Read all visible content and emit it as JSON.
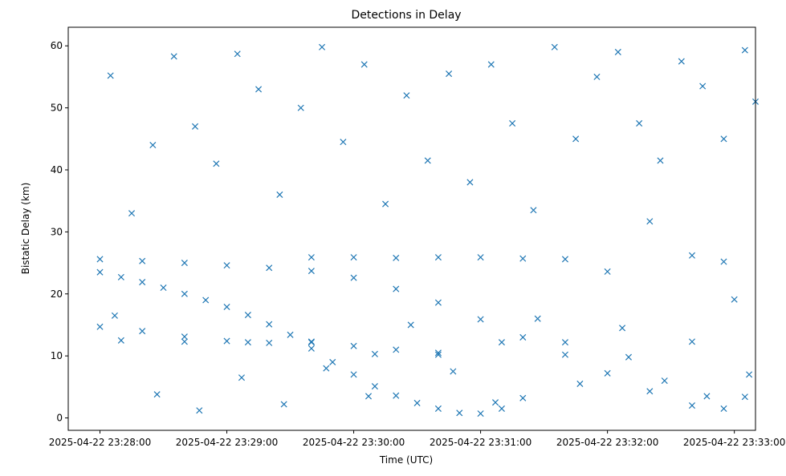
{
  "chart_data": {
    "type": "scatter",
    "title": "Detections in Delay",
    "xlabel": "Time (UTC)",
    "ylabel": "Bistatic Delay (km)",
    "x_start": "2025-04-22 23:28:00",
    "xlim": [
      "2025-04-22 23:27:45",
      "2025-04-22 23:33:10"
    ],
    "ylim": [
      -2,
      63
    ],
    "x_ticks": [
      "2025-04-22 23:28:00",
      "2025-04-22 23:29:00",
      "2025-04-22 23:30:00",
      "2025-04-22 23:31:00",
      "2025-04-22 23:32:00",
      "2025-04-22 23:33:00"
    ],
    "y_ticks": [
      0,
      10,
      20,
      30,
      40,
      50,
      60
    ],
    "marker": "x",
    "marker_color": "#1f77b4",
    "grid": false,
    "series": [
      {
        "name": "",
        "points": [
          [
            "2025-04-22 23:28:00",
            23.5
          ],
          [
            "2025-04-22 23:28:10",
            22.7
          ],
          [
            "2025-04-22 23:28:20",
            21.9
          ],
          [
            "2025-04-22 23:28:30",
            21.0
          ],
          [
            "2025-04-22 23:28:40",
            20.0
          ],
          [
            "2025-04-22 23:28:50",
            19.0
          ],
          [
            "2025-04-22 23:29:00",
            17.9
          ],
          [
            "2025-04-22 23:29:10",
            16.6
          ],
          [
            "2025-04-22 23:29:20",
            15.1
          ],
          [
            "2025-04-22 23:29:30",
            13.4
          ],
          [
            "2025-04-22 23:29:40",
            11.2
          ],
          [
            "2025-04-22 23:29:50",
            9.0
          ],
          [
            "2025-04-22 23:30:00",
            7.0
          ],
          [
            "2025-04-22 23:30:10",
            5.1
          ],
          [
            "2025-04-22 23:30:20",
            3.6
          ],
          [
            "2025-04-22 23:30:30",
            2.4
          ],
          [
            "2025-04-22 23:30:40",
            1.5
          ],
          [
            "2025-04-22 23:30:50",
            0.8
          ],
          [
            "2025-04-22 23:31:00",
            0.7
          ],
          [
            "2025-04-22 23:31:10",
            1.5
          ],
          [
            "2025-04-22 23:31:20",
            3.2
          ],
          [
            "2025-04-22 23:28:00",
            25.6
          ],
          [
            "2025-04-22 23:28:20",
            25.3
          ],
          [
            "2025-04-22 23:28:40",
            25.0
          ],
          [
            "2025-04-22 23:29:00",
            24.6
          ],
          [
            "2025-04-22 23:29:20",
            24.2
          ],
          [
            "2025-04-22 23:29:40",
            23.7
          ],
          [
            "2025-04-22 23:30:00",
            22.6
          ],
          [
            "2025-04-22 23:30:20",
            20.8
          ],
          [
            "2025-04-22 23:30:40",
            18.6
          ],
          [
            "2025-04-22 23:31:00",
            15.9
          ],
          [
            "2025-04-22 23:31:20",
            13.0
          ],
          [
            "2025-04-22 23:31:40",
            10.2
          ],
          [
            "2025-04-22 23:32:00",
            7.2
          ],
          [
            "2025-04-22 23:32:20",
            4.3
          ],
          [
            "2025-04-22 23:32:40",
            2.0
          ],
          [
            "2025-04-22 23:32:55",
            1.5
          ],
          [
            "2025-04-22 23:33:05",
            3.4
          ],
          [
            "2025-04-22 23:28:00",
            14.7
          ],
          [
            "2025-04-22 23:28:20",
            14.0
          ],
          [
            "2025-04-22 23:28:40",
            13.1
          ],
          [
            "2025-04-22 23:29:00",
            12.4
          ],
          [
            "2025-04-22 23:29:20",
            12.1
          ],
          [
            "2025-04-22 23:29:40",
            12.2
          ],
          [
            "2025-04-22 23:30:00",
            11.6
          ],
          [
            "2025-04-22 23:30:20",
            11.0
          ],
          [
            "2025-04-22 23:30:40",
            10.5
          ],
          [
            "2025-04-22 23:29:40",
            25.9
          ],
          [
            "2025-04-22 23:30:00",
            25.9
          ],
          [
            "2025-04-22 23:30:20",
            25.8
          ],
          [
            "2025-04-22 23:30:40",
            25.9
          ],
          [
            "2025-04-22 23:31:00",
            25.9
          ],
          [
            "2025-04-22 23:31:20",
            25.7
          ],
          [
            "2025-04-22 23:31:40",
            25.6
          ],
          [
            "2025-04-22 23:32:00",
            23.6
          ],
          [
            "2025-04-22 23:32:20",
            31.7
          ],
          [
            "2025-04-22 23:32:40",
            26.2
          ],
          [
            "2025-04-22 23:32:55",
            25.2
          ],
          [
            "2025-04-22 23:28:10",
            12.5
          ],
          [
            "2025-04-22 23:28:40",
            12.3
          ],
          [
            "2025-04-22 23:29:10",
            12.2
          ],
          [
            "2025-04-22 23:29:40",
            12.3
          ],
          [
            "2025-04-22 23:30:10",
            10.3
          ],
          [
            "2025-04-22 23:30:40",
            10.2
          ],
          [
            "2025-04-22 23:31:10",
            12.2
          ],
          [
            "2025-04-22 23:31:40",
            12.2
          ],
          [
            "2025-04-22 23:32:10",
            9.8
          ],
          [
            "2025-04-22 23:32:40",
            12.3
          ],
          [
            "2025-04-22 23:33:00",
            19.1
          ],
          [
            "2025-04-22 23:28:05",
            55.2
          ],
          [
            "2025-04-22 23:28:15",
            33.0
          ],
          [
            "2025-04-22 23:28:25",
            44.0
          ],
          [
            "2025-04-22 23:28:35",
            58.3
          ],
          [
            "2025-04-22 23:28:45",
            47.0
          ],
          [
            "2025-04-22 23:28:55",
            41.0
          ],
          [
            "2025-04-22 23:29:05",
            58.7
          ],
          [
            "2025-04-22 23:29:15",
            53.0
          ],
          [
            "2025-04-22 23:29:25",
            36.0
          ],
          [
            "2025-04-22 23:29:35",
            50.0
          ],
          [
            "2025-04-22 23:29:45",
            59.8
          ],
          [
            "2025-04-22 23:29:55",
            44.5
          ],
          [
            "2025-04-22 23:30:05",
            57.0
          ],
          [
            "2025-04-22 23:30:15",
            34.5
          ],
          [
            "2025-04-22 23:30:25",
            52.0
          ],
          [
            "2025-04-22 23:30:35",
            41.5
          ],
          [
            "2025-04-22 23:30:45",
            55.5
          ],
          [
            "2025-04-22 23:30:55",
            38.0
          ],
          [
            "2025-04-22 23:31:05",
            57.0
          ],
          [
            "2025-04-22 23:31:15",
            47.5
          ],
          [
            "2025-04-22 23:31:25",
            33.5
          ],
          [
            "2025-04-22 23:31:35",
            59.8
          ],
          [
            "2025-04-22 23:31:45",
            45.0
          ],
          [
            "2025-04-22 23:31:55",
            55.0
          ],
          [
            "2025-04-22 23:32:05",
            59.0
          ],
          [
            "2025-04-22 23:32:15",
            47.5
          ],
          [
            "2025-04-22 23:32:25",
            41.5
          ],
          [
            "2025-04-22 23:32:35",
            57.5
          ],
          [
            "2025-04-22 23:32:45",
            53.5
          ],
          [
            "2025-04-22 23:32:55",
            45.0
          ],
          [
            "2025-04-22 23:33:05",
            59.3
          ],
          [
            "2025-04-22 23:33:10",
            51.0
          ],
          [
            "2025-04-22 23:28:07",
            16.5
          ],
          [
            "2025-04-22 23:28:27",
            3.8
          ],
          [
            "2025-04-22 23:28:47",
            1.2
          ],
          [
            "2025-04-22 23:29:07",
            6.5
          ],
          [
            "2025-04-22 23:29:27",
            2.2
          ],
          [
            "2025-04-22 23:29:47",
            8.0
          ],
          [
            "2025-04-22 23:30:07",
            3.5
          ],
          [
            "2025-04-22 23:30:27",
            15.0
          ],
          [
            "2025-04-22 23:30:47",
            7.5
          ],
          [
            "2025-04-22 23:31:07",
            2.5
          ],
          [
            "2025-04-22 23:31:27",
            16.0
          ],
          [
            "2025-04-22 23:31:47",
            5.5
          ],
          [
            "2025-04-22 23:32:07",
            14.5
          ],
          [
            "2025-04-22 23:32:27",
            6.0
          ],
          [
            "2025-04-22 23:32:47",
            3.5
          ],
          [
            "2025-04-22 23:33:07",
            7.0
          ]
        ]
      }
    ]
  }
}
